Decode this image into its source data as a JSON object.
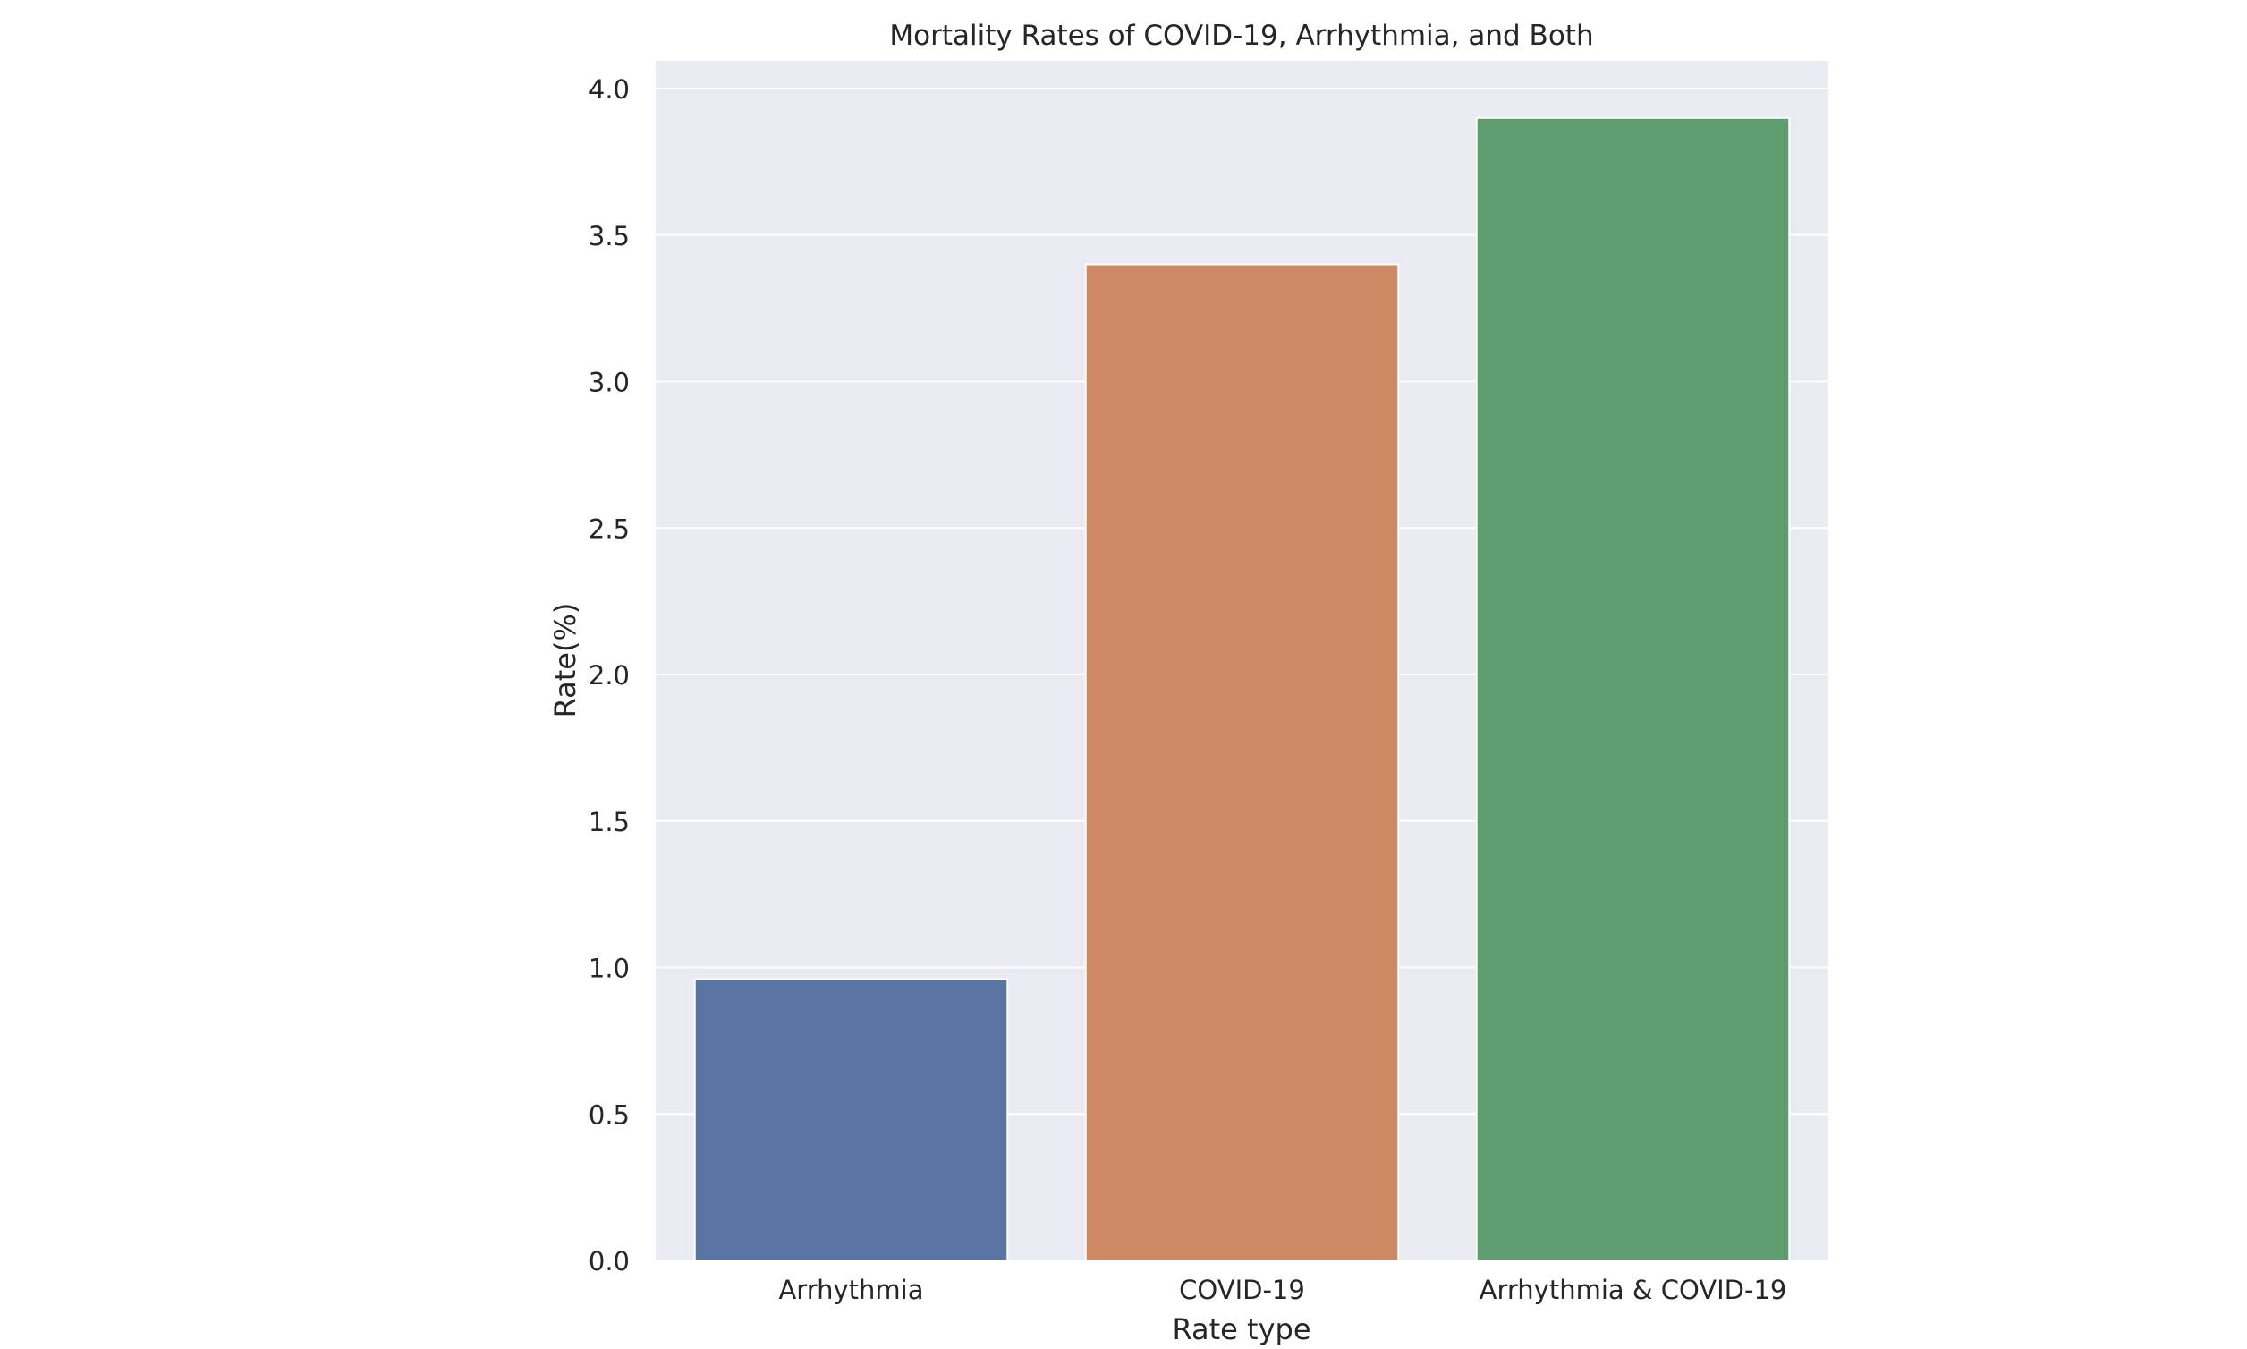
{
  "chart_data": {
    "type": "bar",
    "title": "Mortality Rates of COVID-19, Arrhythmia, and Both",
    "xlabel": "Rate type",
    "ylabel": "Rate(%)",
    "categories": [
      "Arrhythmia",
      "COVID-19",
      "Arrhythmia & COVID-19"
    ],
    "values": [
      0.96,
      3.4,
      3.9
    ],
    "colors": [
      "#5875a4",
      "#cc8963",
      "#5f9e6e"
    ],
    "ylim": [
      0,
      4.1
    ],
    "yticks": [
      0.0,
      0.5,
      1.0,
      1.5,
      2.0,
      2.5,
      3.0,
      3.5,
      4.0
    ],
    "ytick_labels": [
      "0.0",
      "0.5",
      "1.0",
      "1.5",
      "2.0",
      "2.5",
      "3.0",
      "3.5",
      "4.0"
    ],
    "grid": true,
    "background_color": "#eaeaf2",
    "grid_color": "#ffffff"
  }
}
